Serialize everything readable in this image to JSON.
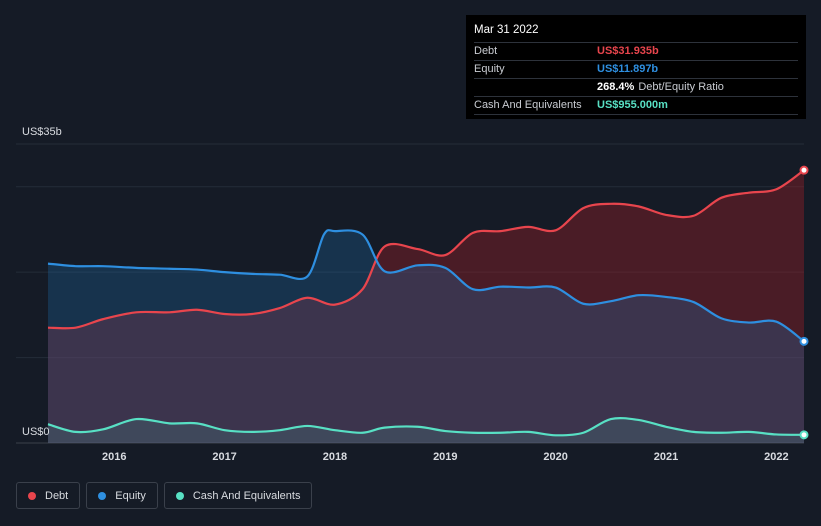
{
  "chart_data": {
    "type": "area",
    "y_axis": {
      "top_label": "US$35b",
      "bottom_label": "US$0",
      "ylim": [
        0,
        35
      ]
    },
    "x_ticks": [
      "2016",
      "2017",
      "2018",
      "2019",
      "2020",
      "2021",
      "2022"
    ],
    "x_tick_values": [
      2016,
      2017,
      2018,
      2019,
      2020,
      2021,
      2022
    ],
    "xlim": [
      2015.4,
      2022.25
    ],
    "series": [
      {
        "name": "Debt",
        "color": "#e8454d",
        "points": [
          [
            2015.4,
            13.5
          ],
          [
            2015.65,
            13.5
          ],
          [
            2015.9,
            14.5
          ],
          [
            2016.2,
            15.3
          ],
          [
            2016.5,
            15.3
          ],
          [
            2016.75,
            15.6
          ],
          [
            2017.0,
            15.1
          ],
          [
            2017.25,
            15.1
          ],
          [
            2017.5,
            15.8
          ],
          [
            2017.75,
            17.0
          ],
          [
            2018.0,
            16.2
          ],
          [
            2018.25,
            18.0
          ],
          [
            2018.45,
            23.0
          ],
          [
            2018.75,
            22.7
          ],
          [
            2019.0,
            22.0
          ],
          [
            2019.25,
            24.6
          ],
          [
            2019.5,
            24.8
          ],
          [
            2019.75,
            25.3
          ],
          [
            2020.0,
            24.9
          ],
          [
            2020.25,
            27.5
          ],
          [
            2020.5,
            28.0
          ],
          [
            2020.75,
            27.7
          ],
          [
            2021.0,
            26.7
          ],
          [
            2021.25,
            26.6
          ],
          [
            2021.5,
            28.7
          ],
          [
            2021.75,
            29.3
          ],
          [
            2022.0,
            29.7
          ],
          [
            2022.25,
            31.935
          ]
        ]
      },
      {
        "name": "Equity",
        "color": "#2e8fe0",
        "points": [
          [
            2015.4,
            21.0
          ],
          [
            2015.65,
            20.7
          ],
          [
            2015.9,
            20.7
          ],
          [
            2016.2,
            20.5
          ],
          [
            2016.5,
            20.4
          ],
          [
            2016.75,
            20.3
          ],
          [
            2017.0,
            20.0
          ],
          [
            2017.25,
            19.8
          ],
          [
            2017.5,
            19.7
          ],
          [
            2017.75,
            19.5
          ],
          [
            2017.9,
            24.4
          ],
          [
            2018.0,
            24.8
          ],
          [
            2018.25,
            24.4
          ],
          [
            2018.45,
            20.1
          ],
          [
            2018.75,
            20.8
          ],
          [
            2019.0,
            20.5
          ],
          [
            2019.25,
            18.0
          ],
          [
            2019.5,
            18.3
          ],
          [
            2019.75,
            18.2
          ],
          [
            2020.0,
            18.2
          ],
          [
            2020.25,
            16.3
          ],
          [
            2020.5,
            16.6
          ],
          [
            2020.75,
            17.3
          ],
          [
            2021.0,
            17.1
          ],
          [
            2021.25,
            16.5
          ],
          [
            2021.5,
            14.6
          ],
          [
            2021.75,
            14.1
          ],
          [
            2022.0,
            14.2
          ],
          [
            2022.25,
            11.897
          ]
        ]
      },
      {
        "name": "Cash And Equivalents",
        "color": "#58e0c4",
        "points": [
          [
            2015.4,
            2.2
          ],
          [
            2015.65,
            1.3
          ],
          [
            2015.9,
            1.6
          ],
          [
            2016.2,
            2.8
          ],
          [
            2016.5,
            2.3
          ],
          [
            2016.75,
            2.3
          ],
          [
            2017.0,
            1.5
          ],
          [
            2017.25,
            1.3
          ],
          [
            2017.5,
            1.5
          ],
          [
            2017.75,
            2.0
          ],
          [
            2018.0,
            1.5
          ],
          [
            2018.25,
            1.2
          ],
          [
            2018.45,
            1.8
          ],
          [
            2018.75,
            1.9
          ],
          [
            2019.0,
            1.4
          ],
          [
            2019.25,
            1.2
          ],
          [
            2019.5,
            1.2
          ],
          [
            2019.75,
            1.3
          ],
          [
            2020.0,
            0.9
          ],
          [
            2020.25,
            1.2
          ],
          [
            2020.5,
            2.8
          ],
          [
            2020.75,
            2.7
          ],
          [
            2021.0,
            1.9
          ],
          [
            2021.25,
            1.3
          ],
          [
            2021.5,
            1.2
          ],
          [
            2021.75,
            1.3
          ],
          [
            2022.0,
            1.0
          ],
          [
            2022.25,
            0.955
          ]
        ]
      }
    ]
  },
  "tooltip": {
    "date": "Mar 31 2022",
    "rows": [
      {
        "label": "Debt",
        "value": "US$31.935b",
        "color": "#e8454d"
      },
      {
        "label": "Equity",
        "value": "US$11.897b",
        "color": "#2e8fe0"
      },
      {
        "label": "",
        "value": "268.4%",
        "suffix": "Debt/Equity Ratio",
        "color": "#ffffff"
      },
      {
        "label": "Cash And Equivalents",
        "value": "US$955.000m",
        "color": "#58e0c4"
      }
    ]
  },
  "legend": [
    {
      "label": "Debt",
      "color": "#e8454d"
    },
    {
      "label": "Equity",
      "color": "#2e8fe0"
    },
    {
      "label": "Cash And Equivalents",
      "color": "#58e0c4"
    }
  ]
}
